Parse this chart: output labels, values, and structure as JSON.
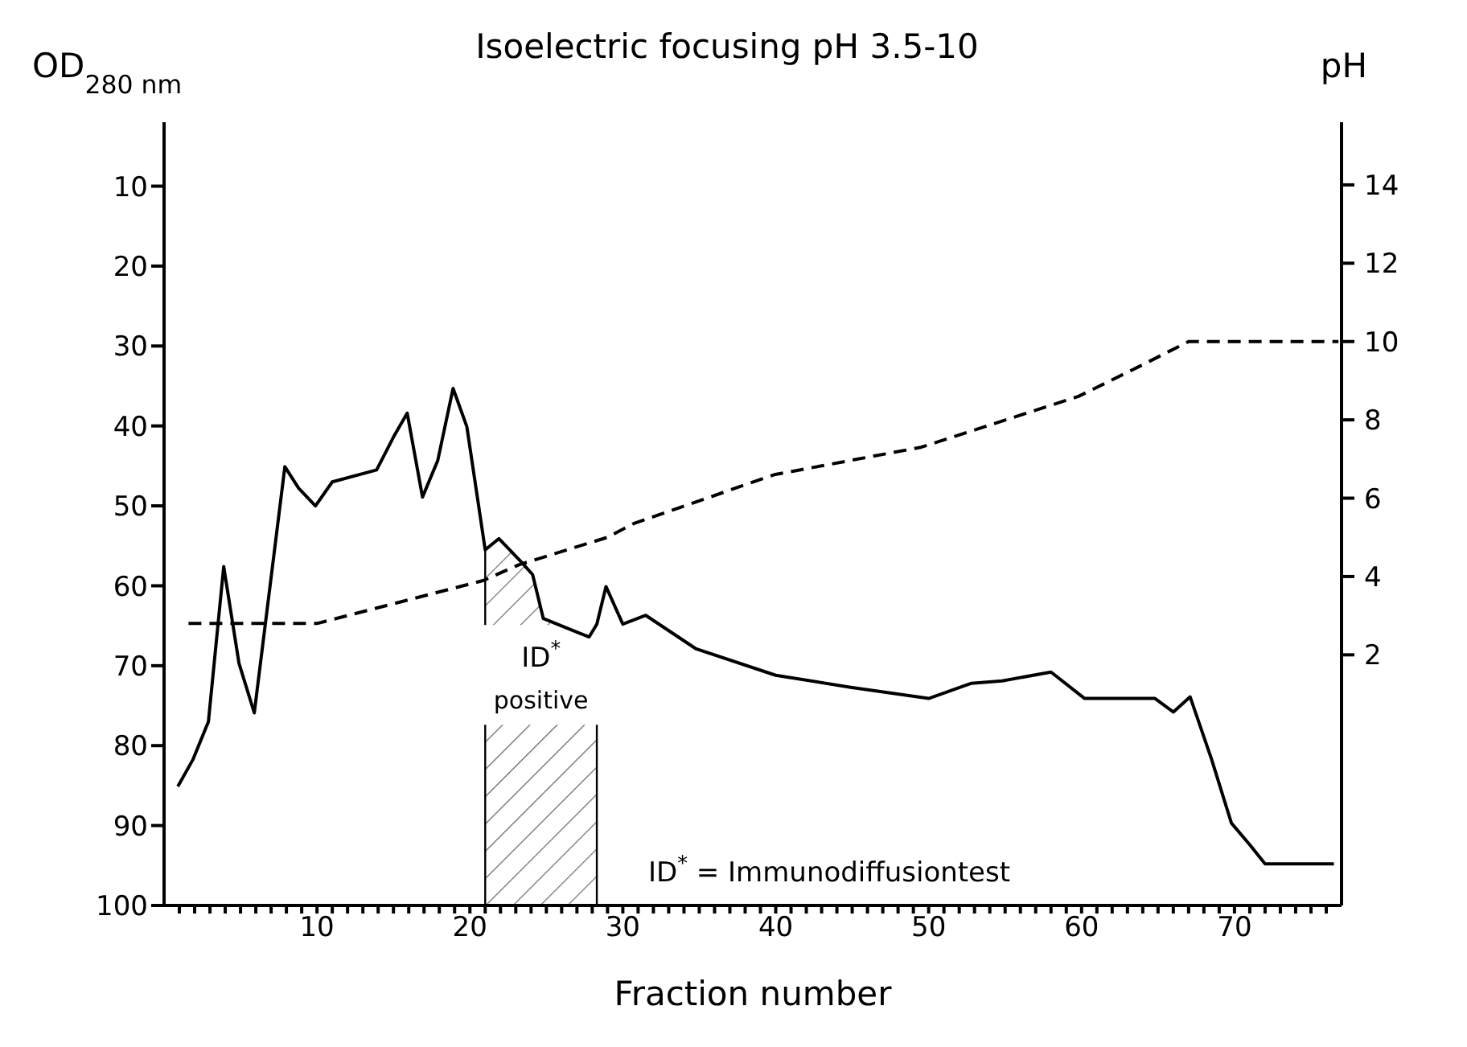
{
  "chart_data": {
    "type": "line",
    "title": "Isoelectric focusing pH 3.5-10",
    "xlabel": "Fraction number",
    "ylabel": "OD$_{280 nm}$",
    "y2label": "pH",
    "annotations": [
      "ID$^{*}$ = Immunodiffusiontest"
    ],
    "xlim": [
      0,
      77
    ],
    "xticks": [
      {
        "value": 1,
        "label": null
      },
      {
        "value": 2,
        "label": null
      },
      {
        "value": 3,
        "label": null
      },
      {
        "value": 4,
        "label": null
      },
      {
        "value": 5,
        "label": null
      },
      {
        "value": 6,
        "label": null
      },
      {
        "value": 7,
        "label": null
      },
      {
        "value": 8,
        "label": null
      },
      {
        "value": 9,
        "label": null
      },
      10,
      {
        "value": 11,
        "label": null
      },
      {
        "value": 12,
        "label": null
      },
      {
        "value": 13,
        "label": null
      },
      {
        "value": 14,
        "label": null
      },
      {
        "value": 15,
        "label": null
      },
      {
        "value": 16,
        "label": null
      },
      {
        "value": 17,
        "label": null
      },
      {
        "value": 18,
        "label": null
      },
      {
        "value": 19,
        "label": null
      },
      20,
      {
        "value": 21,
        "label": null
      },
      {
        "value": 22,
        "label": null
      },
      {
        "value": 23,
        "label": null
      },
      {
        "value": 24,
        "label": null
      },
      {
        "value": 25,
        "label": null
      },
      {
        "value": 26,
        "label": null
      },
      {
        "value": 27,
        "label": null
      },
      {
        "value": 28,
        "label": null
      },
      {
        "value": 29,
        "label": null
      },
      30,
      {
        "value": 31,
        "label": null
      },
      {
        "value": 32,
        "label": null
      },
      {
        "value": 33,
        "label": null
      },
      {
        "value": 34,
        "label": null
      },
      {
        "value": 35,
        "label": null
      },
      {
        "value": 36,
        "label": null
      },
      {
        "value": 37,
        "label": null
      },
      {
        "value": 38,
        "label": null
      },
      {
        "value": 39,
        "label": null
      },
      40,
      {
        "value": 41,
        "label": null
      },
      {
        "value": 42,
        "label": null
      },
      {
        "value": 43,
        "label": null
      },
      {
        "value": 44,
        "label": null
      },
      {
        "value": 45,
        "label": null
      },
      {
        "value": 46,
        "label": null
      },
      {
        "value": 47,
        "label": null
      },
      {
        "value": 48,
        "label": null
      },
      {
        "value": 49,
        "label": null
      },
      50,
      {
        "value": 51,
        "label": null
      },
      {
        "value": 52,
        "label": null
      },
      {
        "value": 53,
        "label": null
      },
      {
        "value": 54,
        "label": null
      },
      {
        "value": 55,
        "label": null
      },
      {
        "value": 56,
        "label": null
      },
      {
        "value": 57,
        "label": null
      },
      {
        "value": 58,
        "label": null
      },
      {
        "value": 59,
        "label": null
      },
      60,
      {
        "value": 61,
        "label": null
      },
      {
        "value": 62,
        "label": null
      },
      {
        "value": 63,
        "label": null
      },
      {
        "value": 64,
        "label": null
      },
      {
        "value": 65,
        "label": null
      },
      {
        "value": 66,
        "label": null
      },
      {
        "value": 67,
        "label": null
      },
      {
        "value": 68,
        "label": null
      },
      {
        "value": 69,
        "label": null
      },
      70,
      {
        "value": 71,
        "label": null
      },
      {
        "value": 72,
        "label": null
      },
      {
        "value": 73,
        "label": null
      },
      {
        "value": 74,
        "label": null
      },
      {
        "value": 75,
        "label": null
      },
      {
        "value": 76,
        "label": null
      }
    ],
    "ylim": [
      100,
      2
    ],
    "yticks": [
      10,
      20,
      30,
      40,
      50,
      60,
      70,
      80,
      90,
      100
    ],
    "y2lim": [
      -4.4,
      15.6
    ],
    "y2ticks": [
      2,
      4,
      6,
      8,
      10,
      12,
      14
    ],
    "series": [
      {
        "color": "#000000",
        "line_style": "solid",
        "x": [
          0.9,
          1.9,
          2.9,
          3.9,
          4.9,
          5.9,
          7.9,
          8.8,
          9.9,
          11,
          13.9,
          15,
          15.9,
          16.9,
          17.9,
          18.9,
          19.8,
          21,
          21.9,
          23.3,
          24.1,
          24.8,
          27,
          27.8,
          28.3,
          28.9,
          30,
          31.5,
          34.8,
          40,
          44.9,
          50,
          52.8,
          54.8,
          58,
          60.2,
          64.8,
          66,
          67.1,
          68.5,
          69.8,
          71,
          72,
          76.5
        ],
        "values": [
          85.1,
          81.7,
          77,
          57.6,
          69.7,
          75.9,
          45.1,
          47.8,
          50,
          47,
          45.5,
          41.4,
          38.4,
          48.9,
          44.3,
          35.3,
          40.1,
          55.5,
          54.1,
          56.9,
          58.6,
          64.1,
          65.8,
          66.4,
          64.8,
          60.1,
          64.8,
          63.7,
          67.9,
          71.2,
          72.7,
          74.1,
          72.2,
          71.9,
          70.8,
          74.1,
          74.1,
          75.8,
          73.9,
          81.7,
          89.7,
          92.4,
          94.8,
          94.8
        ]
      },
      {
        "axis": "y2",
        "color": "#000000",
        "line_style": "dashed",
        "x": [
          1.6,
          10,
          20.9,
          23.2,
          29,
          30.7,
          39.9,
          49.5,
          59.8,
          63.7,
          67,
          76.8
        ],
        "values": [
          2.8,
          2.8,
          3.9,
          4.3,
          5,
          5.35,
          6.6,
          7.3,
          8.6,
          9.35,
          10,
          10
        ]
      }
    ],
    "bands": [
      {
        "axis": "x",
        "from": 21,
        "to": 28.3,
        "label": "ID$^{*}$ positive"
      }
    ],
    "marker": "none"
  }
}
